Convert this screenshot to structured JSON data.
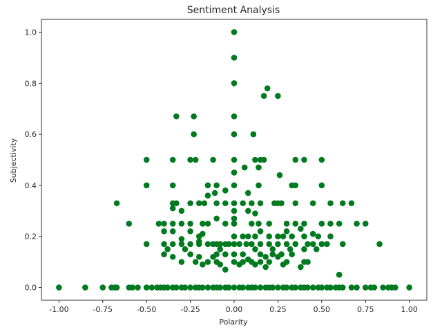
{
  "chart_data": {
    "type": "scatter",
    "title": "Sentiment Analysis",
    "xlabel": "Polarity",
    "ylabel": "Subjectivity",
    "xlim": [
      -1.1,
      1.1
    ],
    "ylim": [
      -0.05,
      1.05
    ],
    "x_ticks": [
      "-1.00",
      "-0.75",
      "-0.50",
      "-0.25",
      "0.00",
      "0.25",
      "0.50",
      "0.75",
      "1.00"
    ],
    "x_tick_values": [
      -1.0,
      -0.75,
      -0.5,
      -0.25,
      0.0,
      0.25,
      0.5,
      0.75,
      1.0
    ],
    "y_ticks": [
      "0.0",
      "0.2",
      "0.4",
      "0.6",
      "0.8",
      "1.0"
    ],
    "y_tick_values": [
      0.0,
      0.2,
      0.4,
      0.6,
      0.8,
      1.0
    ],
    "grid": false,
    "marker_color": "#007a1f",
    "series": [
      {
        "points": [
          [
            -1.0,
            0.0
          ],
          [
            -0.85,
            0.0
          ],
          [
            -0.75,
            0.0
          ],
          [
            -0.7,
            0.0
          ],
          [
            -0.68,
            0.0
          ],
          [
            -0.67,
            0.0
          ],
          [
            -0.6,
            0.0
          ],
          [
            -0.58,
            0.0
          ],
          [
            -0.55,
            0.0
          ],
          [
            -0.5,
            0.0
          ],
          [
            -0.47,
            0.0
          ],
          [
            -0.44,
            0.0
          ],
          [
            -0.42,
            0.0
          ],
          [
            -0.4,
            0.0
          ],
          [
            -0.38,
            0.0
          ],
          [
            -0.35,
            0.0
          ],
          [
            -0.33,
            0.0
          ],
          [
            -0.3,
            0.0
          ],
          [
            -0.28,
            0.0
          ],
          [
            -0.25,
            0.0
          ],
          [
            -0.22,
            0.0
          ],
          [
            -0.2,
            0.0
          ],
          [
            -0.18,
            0.0
          ],
          [
            -0.15,
            0.0
          ],
          [
            -0.12,
            0.0
          ],
          [
            -0.1,
            0.0
          ],
          [
            -0.08,
            0.0
          ],
          [
            -0.05,
            0.0
          ],
          [
            -0.03,
            0.0
          ],
          [
            0.0,
            0.0
          ],
          [
            0.03,
            0.0
          ],
          [
            0.05,
            0.0
          ],
          [
            0.08,
            0.0
          ],
          [
            0.1,
            0.0
          ],
          [
            0.12,
            0.0
          ],
          [
            0.15,
            0.0
          ],
          [
            0.18,
            0.0
          ],
          [
            0.2,
            0.0
          ],
          [
            0.22,
            0.0
          ],
          [
            0.25,
            0.0
          ],
          [
            0.28,
            0.0
          ],
          [
            0.3,
            0.0
          ],
          [
            0.33,
            0.0
          ],
          [
            0.35,
            0.0
          ],
          [
            0.38,
            0.0
          ],
          [
            0.4,
            0.0
          ],
          [
            0.42,
            0.0
          ],
          [
            0.45,
            0.0
          ],
          [
            0.48,
            0.0
          ],
          [
            0.5,
            0.0
          ],
          [
            0.53,
            0.0
          ],
          [
            0.55,
            0.0
          ],
          [
            0.58,
            0.0
          ],
          [
            0.6,
            0.0
          ],
          [
            0.62,
            0.0
          ],
          [
            0.67,
            0.0
          ],
          [
            0.7,
            0.0
          ],
          [
            0.75,
            0.0
          ],
          [
            0.78,
            0.0
          ],
          [
            0.8,
            0.0
          ],
          [
            0.85,
            0.0
          ],
          [
            0.88,
            0.0
          ],
          [
            0.9,
            0.0
          ],
          [
            0.92,
            0.0
          ],
          [
            1.0,
            0.0
          ],
          [
            0.0,
            1.0
          ],
          [
            0.0,
            0.9
          ],
          [
            0.0,
            0.8
          ],
          [
            0.0,
            0.67
          ],
          [
            0.0,
            0.6
          ],
          [
            0.0,
            0.5
          ],
          [
            0.0,
            0.45
          ],
          [
            0.0,
            0.4
          ],
          [
            0.0,
            0.33
          ],
          [
            0.0,
            0.3
          ],
          [
            0.0,
            0.27
          ],
          [
            0.0,
            0.25
          ],
          [
            0.0,
            0.2
          ],
          [
            0.0,
            0.17
          ],
          [
            0.0,
            0.13
          ],
          [
            0.0,
            0.1
          ],
          [
            0.19,
            0.78
          ],
          [
            0.17,
            0.75
          ],
          [
            0.25,
            0.75
          ],
          [
            -0.33,
            0.67
          ],
          [
            -0.23,
            0.67
          ],
          [
            -0.23,
            0.6
          ],
          [
            0.11,
            0.6
          ],
          [
            -0.5,
            0.5
          ],
          [
            -0.35,
            0.5
          ],
          [
            -0.25,
            0.5
          ],
          [
            -0.22,
            0.5
          ],
          [
            -0.12,
            0.5
          ],
          [
            0.12,
            0.5
          ],
          [
            0.15,
            0.5
          ],
          [
            0.17,
            0.5
          ],
          [
            0.35,
            0.5
          ],
          [
            0.4,
            0.5
          ],
          [
            0.5,
            0.5
          ],
          [
            0.06,
            0.47
          ],
          [
            0.14,
            0.47
          ],
          [
            0.26,
            0.44
          ],
          [
            -0.5,
            0.4
          ],
          [
            -0.35,
            0.4
          ],
          [
            -0.15,
            0.4
          ],
          [
            -0.1,
            0.4
          ],
          [
            0.14,
            0.4
          ],
          [
            0.33,
            0.4
          ],
          [
            0.35,
            0.4
          ],
          [
            0.5,
            0.4
          ],
          [
            -0.05,
            0.38
          ],
          [
            -0.11,
            0.37
          ],
          [
            0.08,
            0.37
          ],
          [
            -0.15,
            0.36
          ],
          [
            -0.67,
            0.33
          ],
          [
            -0.35,
            0.33
          ],
          [
            -0.33,
            0.33
          ],
          [
            -0.25,
            0.33
          ],
          [
            -0.2,
            0.33
          ],
          [
            -0.17,
            0.33
          ],
          [
            -0.1,
            0.33
          ],
          [
            -0.05,
            0.33
          ],
          [
            0.05,
            0.33
          ],
          [
            0.1,
            0.33
          ],
          [
            0.15,
            0.33
          ],
          [
            0.23,
            0.33
          ],
          [
            0.25,
            0.33
          ],
          [
            0.27,
            0.33
          ],
          [
            0.35,
            0.33
          ],
          [
            0.45,
            0.33
          ],
          [
            0.55,
            0.33
          ],
          [
            0.62,
            0.33
          ],
          [
            0.67,
            0.33
          ],
          [
            -0.35,
            0.31
          ],
          [
            -0.3,
            0.3
          ],
          [
            0.08,
            0.3
          ],
          [
            0.12,
            0.29
          ],
          [
            -0.6,
            0.25
          ],
          [
            -0.43,
            0.25
          ],
          [
            -0.4,
            0.25
          ],
          [
            -0.35,
            0.25
          ],
          [
            -0.3,
            0.25
          ],
          [
            -0.25,
            0.25
          ],
          [
            -0.18,
            0.25
          ],
          [
            -0.15,
            0.25
          ],
          [
            -0.05,
            0.25
          ],
          [
            0.0,
            0.25
          ],
          [
            0.1,
            0.25
          ],
          [
            0.14,
            0.25
          ],
          [
            0.2,
            0.25
          ],
          [
            0.3,
            0.25
          ],
          [
            0.35,
            0.25
          ],
          [
            0.4,
            0.25
          ],
          [
            0.5,
            0.25
          ],
          [
            0.55,
            0.25
          ],
          [
            0.6,
            0.25
          ],
          [
            0.7,
            0.25
          ],
          [
            0.75,
            0.25
          ],
          [
            -0.1,
            0.27
          ],
          [
            -0.2,
            0.2
          ],
          [
            -0.4,
            0.22
          ],
          [
            -0.35,
            0.22
          ],
          [
            -0.25,
            0.22
          ],
          [
            -0.18,
            0.21
          ],
          [
            0.15,
            0.22
          ],
          [
            0.3,
            0.22
          ],
          [
            0.38,
            0.23
          ],
          [
            0.45,
            0.21
          ],
          [
            -0.2,
            0.18
          ],
          [
            -0.3,
            0.19
          ],
          [
            0.05,
            0.2
          ],
          [
            0.08,
            0.2
          ],
          [
            0.12,
            0.2
          ],
          [
            0.2,
            0.2
          ],
          [
            0.25,
            0.2
          ],
          [
            0.28,
            0.2
          ],
          [
            0.33,
            0.2
          ],
          [
            0.4,
            0.2
          ],
          [
            0.48,
            0.2
          ],
          [
            0.55,
            0.2
          ],
          [
            -0.5,
            0.17
          ],
          [
            -0.4,
            0.17
          ],
          [
            -0.35,
            0.17
          ],
          [
            -0.3,
            0.17
          ],
          [
            -0.25,
            0.17
          ],
          [
            -0.2,
            0.17
          ],
          [
            -0.15,
            0.17
          ],
          [
            -0.12,
            0.17
          ],
          [
            -0.1,
            0.17
          ],
          [
            -0.08,
            0.17
          ],
          [
            -0.05,
            0.17
          ],
          [
            -0.03,
            0.17
          ],
          [
            0.0,
            0.17
          ],
          [
            0.03,
            0.17
          ],
          [
            0.07,
            0.17
          ],
          [
            0.1,
            0.17
          ],
          [
            0.15,
            0.17
          ],
          [
            0.2,
            0.17
          ],
          [
            0.25,
            0.17
          ],
          [
            0.3,
            0.17
          ],
          [
            0.35,
            0.17
          ],
          [
            0.42,
            0.17
          ],
          [
            0.45,
            0.17
          ],
          [
            0.5,
            0.17
          ],
          [
            0.53,
            0.17
          ],
          [
            0.62,
            0.17
          ],
          [
            0.83,
            0.17
          ],
          [
            -0.38,
            0.15
          ],
          [
            -0.28,
            0.15
          ],
          [
            -0.08,
            0.15
          ],
          [
            0.12,
            0.15
          ],
          [
            0.22,
            0.15
          ],
          [
            0.32,
            0.15
          ],
          [
            0.4,
            0.15
          ],
          [
            0.47,
            0.15
          ],
          [
            -0.4,
            0.13
          ],
          [
            -0.25,
            0.13
          ],
          [
            -0.1,
            0.13
          ],
          [
            -0.05,
            0.13
          ],
          [
            0.05,
            0.13
          ],
          [
            0.15,
            0.13
          ],
          [
            0.22,
            0.13
          ],
          [
            0.27,
            0.13
          ],
          [
            0.33,
            0.13
          ],
          [
            -0.35,
            0.12
          ],
          [
            -0.2,
            0.12
          ],
          [
            -0.12,
            0.12
          ],
          [
            0.08,
            0.11
          ],
          [
            0.18,
            0.12
          ],
          [
            0.25,
            0.12
          ],
          [
            -0.3,
            0.1
          ],
          [
            -0.22,
            0.1
          ],
          [
            -0.15,
            0.1
          ],
          [
            -0.1,
            0.1
          ],
          [
            0.05,
            0.1
          ],
          [
            0.1,
            0.1
          ],
          [
            0.15,
            0.1
          ],
          [
            0.2,
            0.1
          ],
          [
            0.3,
            0.1
          ],
          [
            0.4,
            0.1
          ],
          [
            0.42,
            0.1
          ],
          [
            -0.18,
            0.09
          ],
          [
            -0.08,
            0.09
          ],
          [
            0.03,
            0.09
          ],
          [
            0.12,
            0.09
          ],
          [
            0.18,
            0.08
          ],
          [
            0.28,
            0.09
          ],
          [
            0.38,
            0.08
          ],
          [
            -0.05,
            0.07
          ],
          [
            0.6,
            0.05
          ]
        ]
      }
    ]
  }
}
